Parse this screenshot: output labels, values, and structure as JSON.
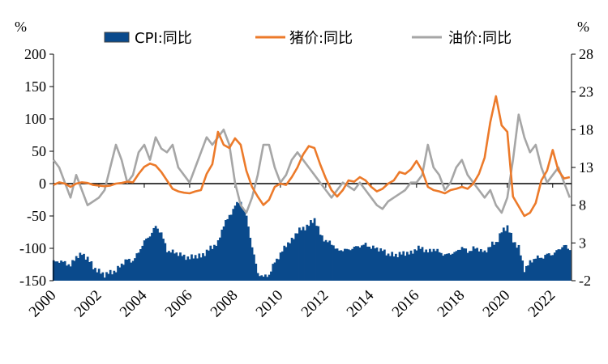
{
  "chart_data": {
    "type": "bar+line",
    "left_unit": "%",
    "right_unit": "%",
    "legend": {
      "cpi": "CPI:同比",
      "pork": "猪价:同比",
      "oil": "油价:同比"
    },
    "x_range": [
      2000,
      2022.83
    ],
    "x_ticks": [
      "2000",
      "2002",
      "2004",
      "2006",
      "2008",
      "2010",
      "2012",
      "2014",
      "2016",
      "2018",
      "2020",
      "2022"
    ],
    "left_axis": {
      "min": -150,
      "max": 200,
      "ticks": [
        200,
        150,
        100,
        50,
        0,
        -50,
        -100,
        -150
      ]
    },
    "right_axis": {
      "min": -2,
      "max": 28,
      "ticks": [
        28,
        23,
        18,
        13,
        8,
        3,
        -2
      ]
    },
    "colors": {
      "cpi": "#0a4a8c",
      "pork": "#ec7a2a",
      "oil": "#a6a6a6"
    },
    "series": [
      {
        "key": "cpi",
        "name": "CPI:同比",
        "axis": "right",
        "style": "bar",
        "points": [
          [
            2000,
            0.5
          ],
          [
            2000.25,
            0.6
          ],
          [
            2000.5,
            0.4
          ],
          [
            2000.75,
            0.0
          ],
          [
            2001.0,
            1.2
          ],
          [
            2001.25,
            1.5
          ],
          [
            2001.5,
            1.0
          ],
          [
            2001.75,
            -0.2
          ],
          [
            2002.0,
            -0.8
          ],
          [
            2002.25,
            -1.2
          ],
          [
            2002.5,
            -0.9
          ],
          [
            2002.75,
            -0.7
          ],
          [
            2003.0,
            0.2
          ],
          [
            2003.25,
            0.8
          ],
          [
            2003.5,
            0.6
          ],
          [
            2003.75,
            1.8
          ],
          [
            2004.0,
            3.2
          ],
          [
            2004.25,
            4.0
          ],
          [
            2004.5,
            5.2
          ],
          [
            2004.75,
            4.3
          ],
          [
            2005.0,
            2.0
          ],
          [
            2005.25,
            1.8
          ],
          [
            2005.5,
            1.6
          ],
          [
            2005.75,
            1.2
          ],
          [
            2006.0,
            1.0
          ],
          [
            2006.25,
            1.3
          ],
          [
            2006.5,
            1.2
          ],
          [
            2006.75,
            1.9
          ],
          [
            2007.0,
            2.5
          ],
          [
            2007.25,
            3.0
          ],
          [
            2007.5,
            5.5
          ],
          [
            2007.75,
            6.5
          ],
          [
            2008.0,
            8.0
          ],
          [
            2008.25,
            8.5
          ],
          [
            2008.5,
            6.5
          ],
          [
            2008.75,
            2.5
          ],
          [
            2009.0,
            -1.0
          ],
          [
            2009.25,
            -1.5
          ],
          [
            2009.5,
            -1.2
          ],
          [
            2009.75,
            0.5
          ],
          [
            2010.0,
            1.5
          ],
          [
            2010.25,
            2.8
          ],
          [
            2010.5,
            3.3
          ],
          [
            2010.75,
            4.6
          ],
          [
            2011.0,
            4.9
          ],
          [
            2011.25,
            5.4
          ],
          [
            2011.5,
            6.2
          ],
          [
            2011.75,
            4.2
          ],
          [
            2012.0,
            3.2
          ],
          [
            2012.25,
            3.0
          ],
          [
            2012.5,
            2.0
          ],
          [
            2012.75,
            2.1
          ],
          [
            2013.0,
            2.1
          ],
          [
            2013.25,
            2.4
          ],
          [
            2013.5,
            2.6
          ],
          [
            2013.75,
            2.8
          ],
          [
            2014.0,
            2.4
          ],
          [
            2014.25,
            2.3
          ],
          [
            2014.5,
            2.0
          ],
          [
            2014.75,
            1.5
          ],
          [
            2015.0,
            1.4
          ],
          [
            2015.25,
            1.5
          ],
          [
            2015.5,
            1.7
          ],
          [
            2015.75,
            1.6
          ],
          [
            2016.0,
            2.3
          ],
          [
            2016.25,
            2.3
          ],
          [
            2016.5,
            1.8
          ],
          [
            2016.75,
            2.2
          ],
          [
            2017.0,
            1.8
          ],
          [
            2017.25,
            1.4
          ],
          [
            2017.5,
            1.6
          ],
          [
            2017.75,
            1.8
          ],
          [
            2018.0,
            2.5
          ],
          [
            2018.25,
            1.8
          ],
          [
            2018.5,
            2.3
          ],
          [
            2018.75,
            2.2
          ],
          [
            2019.0,
            1.7
          ],
          [
            2019.25,
            2.7
          ],
          [
            2019.5,
            3.0
          ],
          [
            2019.75,
            4.5
          ],
          [
            2020.0,
            5.2
          ],
          [
            2020.25,
            3.3
          ],
          [
            2020.5,
            2.4
          ],
          [
            2020.75,
            -0.5
          ],
          [
            2021.0,
            0.4
          ],
          [
            2021.25,
            1.1
          ],
          [
            2021.5,
            1.0
          ],
          [
            2021.75,
            1.5
          ],
          [
            2022.0,
            1.5
          ],
          [
            2022.25,
            2.1
          ],
          [
            2022.5,
            2.7
          ],
          [
            2022.75,
            2.1
          ]
        ]
      },
      {
        "key": "pork",
        "name": "猪价:同比",
        "axis": "left",
        "style": "line",
        "points": [
          [
            2000,
            -2
          ],
          [
            2000.25,
            2
          ],
          [
            2000.5,
            0
          ],
          [
            2000.75,
            -5
          ],
          [
            2001.0,
            0
          ],
          [
            2001.25,
            2
          ],
          [
            2001.5,
            1
          ],
          [
            2001.75,
            -2
          ],
          [
            2002.0,
            -3
          ],
          [
            2002.25,
            -4
          ],
          [
            2002.5,
            -3
          ],
          [
            2002.75,
            0
          ],
          [
            2003.0,
            1
          ],
          [
            2003.25,
            3
          ],
          [
            2003.5,
            2
          ],
          [
            2003.75,
            15
          ],
          [
            2004.0,
            26
          ],
          [
            2004.25,
            31
          ],
          [
            2004.5,
            28
          ],
          [
            2004.75,
            18
          ],
          [
            2005.0,
            5
          ],
          [
            2005.25,
            -8
          ],
          [
            2005.5,
            -12
          ],
          [
            2005.75,
            -14
          ],
          [
            2006.0,
            -15
          ],
          [
            2006.25,
            -12
          ],
          [
            2006.5,
            -10
          ],
          [
            2006.75,
            15
          ],
          [
            2007.0,
            30
          ],
          [
            2007.25,
            80
          ],
          [
            2007.5,
            60
          ],
          [
            2007.75,
            55
          ],
          [
            2008.0,
            70
          ],
          [
            2008.25,
            60
          ],
          [
            2008.5,
            20
          ],
          [
            2008.75,
            -5
          ],
          [
            2009.0,
            -20
          ],
          [
            2009.25,
            -33
          ],
          [
            2009.5,
            -25
          ],
          [
            2009.75,
            -5
          ],
          [
            2010.0,
            0
          ],
          [
            2010.25,
            -2
          ],
          [
            2010.5,
            10
          ],
          [
            2010.75,
            25
          ],
          [
            2011.0,
            45
          ],
          [
            2011.25,
            58
          ],
          [
            2011.5,
            55
          ],
          [
            2011.75,
            30
          ],
          [
            2012.0,
            8
          ],
          [
            2012.25,
            -10
          ],
          [
            2012.5,
            -20
          ],
          [
            2012.75,
            -10
          ],
          [
            2013.0,
            5
          ],
          [
            2013.25,
            3
          ],
          [
            2013.5,
            10
          ],
          [
            2013.75,
            5
          ],
          [
            2014.0,
            -5
          ],
          [
            2014.25,
            -12
          ],
          [
            2014.5,
            -8
          ],
          [
            2014.75,
            0
          ],
          [
            2015.0,
            5
          ],
          [
            2015.25,
            18
          ],
          [
            2015.5,
            15
          ],
          [
            2015.75,
            22
          ],
          [
            2016.0,
            35
          ],
          [
            2016.25,
            20
          ],
          [
            2016.5,
            -5
          ],
          [
            2016.75,
            -10
          ],
          [
            2017.0,
            -12
          ],
          [
            2017.25,
            -15
          ],
          [
            2017.5,
            -10
          ],
          [
            2017.75,
            -8
          ],
          [
            2018.0,
            -5
          ],
          [
            2018.25,
            -8
          ],
          [
            2018.5,
            0
          ],
          [
            2018.75,
            15
          ],
          [
            2019.0,
            40
          ],
          [
            2019.25,
            95
          ],
          [
            2019.5,
            135
          ],
          [
            2019.75,
            90
          ],
          [
            2020.0,
            80
          ],
          [
            2020.25,
            -20
          ],
          [
            2020.5,
            -35
          ],
          [
            2020.75,
            -50
          ],
          [
            2021.0,
            -45
          ],
          [
            2021.25,
            -30
          ],
          [
            2021.5,
            5
          ],
          [
            2021.75,
            20
          ],
          [
            2022.0,
            52
          ],
          [
            2022.25,
            20
          ],
          [
            2022.5,
            8
          ],
          [
            2022.75,
            10
          ]
        ]
      },
      {
        "key": "oil",
        "name": "油价:同比",
        "axis": "right",
        "style": "line",
        "points": [
          [
            2000,
            14
          ],
          [
            2000.25,
            13
          ],
          [
            2000.5,
            11
          ],
          [
            2000.75,
            9
          ],
          [
            2001.0,
            12
          ],
          [
            2001.25,
            10
          ],
          [
            2001.5,
            8
          ],
          [
            2001.75,
            8.5
          ],
          [
            2002.0,
            9
          ],
          [
            2002.25,
            10
          ],
          [
            2002.5,
            13
          ],
          [
            2002.75,
            16
          ],
          [
            2003.0,
            14
          ],
          [
            2003.25,
            11
          ],
          [
            2003.5,
            12
          ],
          [
            2003.75,
            15
          ],
          [
            2004.0,
            16
          ],
          [
            2004.25,
            14
          ],
          [
            2004.5,
            17
          ],
          [
            2004.75,
            15.5
          ],
          [
            2005.0,
            15
          ],
          [
            2005.25,
            16
          ],
          [
            2005.5,
            13
          ],
          [
            2005.75,
            12
          ],
          [
            2006.0,
            11
          ],
          [
            2006.25,
            13
          ],
          [
            2006.5,
            15
          ],
          [
            2006.75,
            17
          ],
          [
            2007.0,
            16
          ],
          [
            2007.25,
            17
          ],
          [
            2007.5,
            18
          ],
          [
            2007.75,
            16
          ],
          [
            2008.0,
            11
          ],
          [
            2008.25,
            8
          ],
          [
            2008.5,
            7
          ],
          [
            2008.75,
            9
          ],
          [
            2009.0,
            12
          ],
          [
            2009.25,
            16
          ],
          [
            2009.5,
            16
          ],
          [
            2009.75,
            13
          ],
          [
            2010.0,
            11
          ],
          [
            2010.25,
            12
          ],
          [
            2010.5,
            14
          ],
          [
            2010.75,
            15
          ],
          [
            2011.0,
            14
          ],
          [
            2011.25,
            13
          ],
          [
            2011.5,
            12
          ],
          [
            2011.75,
            11
          ],
          [
            2012.0,
            10
          ],
          [
            2012.25,
            9
          ],
          [
            2012.5,
            10
          ],
          [
            2012.75,
            11
          ],
          [
            2013.0,
            10.5
          ],
          [
            2013.25,
            10
          ],
          [
            2013.5,
            11
          ],
          [
            2013.75,
            10
          ],
          [
            2014.0,
            9
          ],
          [
            2014.25,
            8
          ],
          [
            2014.5,
            7.5
          ],
          [
            2014.75,
            8.5
          ],
          [
            2015.0,
            9
          ],
          [
            2015.25,
            9.5
          ],
          [
            2015.5,
            10
          ],
          [
            2015.75,
            11
          ],
          [
            2016.0,
            11
          ],
          [
            2016.25,
            12
          ],
          [
            2016.5,
            16
          ],
          [
            2016.75,
            13
          ],
          [
            2017.0,
            12
          ],
          [
            2017.25,
            10
          ],
          [
            2017.5,
            11
          ],
          [
            2017.75,
            13
          ],
          [
            2018.0,
            14
          ],
          [
            2018.25,
            12
          ],
          [
            2018.5,
            11
          ],
          [
            2018.75,
            10
          ],
          [
            2019.0,
            9
          ],
          [
            2019.25,
            10
          ],
          [
            2019.5,
            8
          ],
          [
            2019.75,
            7
          ],
          [
            2020.0,
            9
          ],
          [
            2020.25,
            14
          ],
          [
            2020.5,
            20
          ],
          [
            2020.75,
            17
          ],
          [
            2021.0,
            15
          ],
          [
            2021.25,
            16
          ],
          [
            2021.5,
            13
          ],
          [
            2021.75,
            11
          ],
          [
            2022.0,
            12
          ],
          [
            2022.25,
            13
          ],
          [
            2022.5,
            11
          ],
          [
            2022.75,
            9
          ]
        ]
      }
    ]
  }
}
